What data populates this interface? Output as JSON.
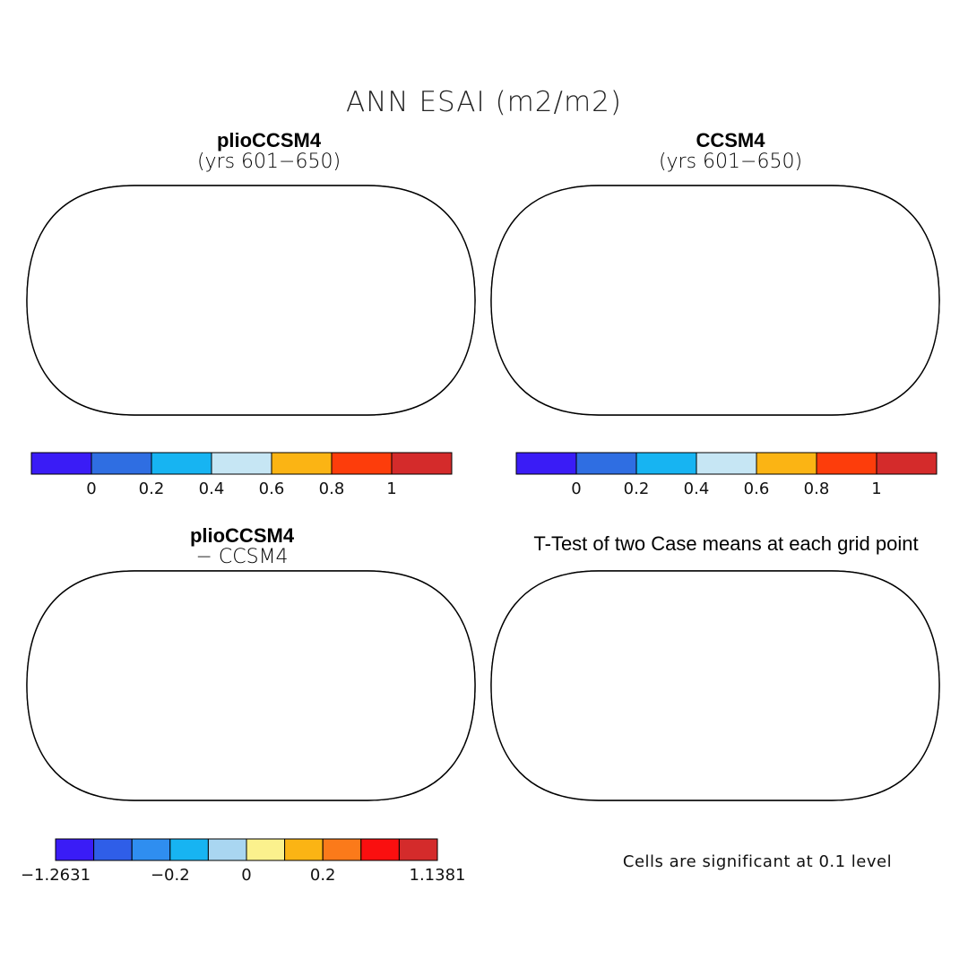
{
  "title": "ANN ESAI (m2/m2)",
  "panels": [
    {
      "id": "plio",
      "title": "plioCCSM4",
      "subtitle": "(yrs 601−650)"
    },
    {
      "id": "ccsm4",
      "title": "CCSM4",
      "subtitle": "(yrs 601−650)"
    },
    {
      "id": "diff",
      "title": "plioCCSM4",
      "subtitle": "− CCSM4"
    },
    {
      "id": "ttest",
      "title": "T-Test of two Case means at each grid point"
    }
  ],
  "footnote": "Cells are significant at 0.1 level",
  "chart_data": [
    {
      "type": "heatmap",
      "title": "plioCCSM4 (yrs 601−650)",
      "colorbar": {
        "colors": [
          "#3a1cf6",
          "#2f6ee2",
          "#17b4f2",
          "#c6e6f4",
          "#fbb414",
          "#fd3d0b",
          "#d42b2b"
        ],
        "tick_labels": [
          "0",
          "0.2",
          "0.4",
          "0.6",
          "0.8",
          "1"
        ]
      }
    },
    {
      "type": "heatmap",
      "title": "CCSM4 (yrs 601−650)",
      "colorbar": {
        "colors": [
          "#3a1cf6",
          "#2f6ee2",
          "#17b4f2",
          "#c6e6f4",
          "#fbb414",
          "#fd3d0b",
          "#d42b2b"
        ],
        "tick_labels": [
          "0",
          "0.2",
          "0.4",
          "0.6",
          "0.8",
          "1"
        ]
      }
    },
    {
      "type": "heatmap",
      "title": "plioCCSM4 − CCSM4",
      "colorbar": {
        "colors": [
          "#3a1cf6",
          "#2f5ee8",
          "#2f8ef0",
          "#17b4f2",
          "#a9d6f1",
          "#fbf18d",
          "#fbb414",
          "#fb7a1a",
          "#fa0f0f",
          "#d42b2b"
        ],
        "tick_labels": [
          "−1.2631",
          "−0.2",
          "0",
          "0.2",
          "1.1381"
        ]
      }
    },
    {
      "type": "heatmap",
      "title": "T-Test of two Case means at each grid point",
      "legend": "Cells are significant at 0.1 level"
    }
  ]
}
